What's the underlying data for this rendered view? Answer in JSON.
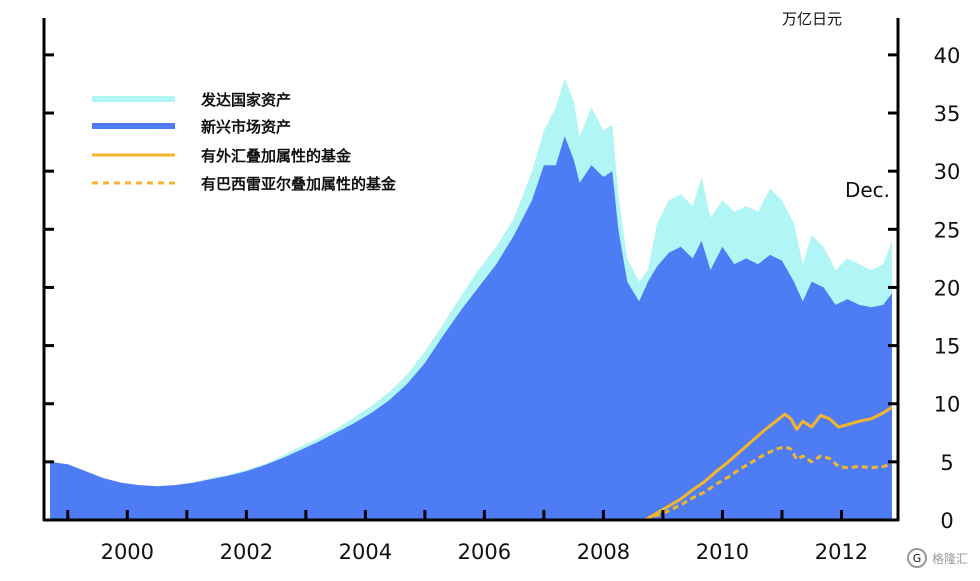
{
  "chart_data": {
    "type": "area",
    "title": "",
    "y_unit": "万亿日元",
    "annotation": "Dec.",
    "x_tick_labels": [
      "2000",
      "2002",
      "2004",
      "2006",
      "2008",
      "2010",
      "2012"
    ],
    "x_range": [
      1998.6,
      2012.95
    ],
    "y_ticks": [
      0,
      5,
      10,
      15,
      20,
      25,
      30,
      35,
      40
    ],
    "ylim": [
      0,
      43
    ],
    "y_axis_side": "right",
    "legend_position": "top-left",
    "series": [
      {
        "name": "发达国家资产",
        "style": "area",
        "color": "#b2f5f5",
        "points": [
          [
            1998.7,
            5.0
          ],
          [
            1999.0,
            4.8
          ],
          [
            1999.3,
            4.2
          ],
          [
            1999.6,
            3.6
          ],
          [
            1999.9,
            3.2
          ],
          [
            2000.2,
            3.0
          ],
          [
            2000.5,
            2.9
          ],
          [
            2000.8,
            3.0
          ],
          [
            2001.1,
            3.2
          ],
          [
            2001.4,
            3.6
          ],
          [
            2001.7,
            3.9
          ],
          [
            2002.0,
            4.3
          ],
          [
            2002.3,
            4.8
          ],
          [
            2002.6,
            5.5
          ],
          [
            2002.9,
            6.3
          ],
          [
            2003.2,
            7.0
          ],
          [
            2003.5,
            7.8
          ],
          [
            2003.8,
            8.8
          ],
          [
            2004.1,
            9.8
          ],
          [
            2004.4,
            11.0
          ],
          [
            2004.7,
            12.5
          ],
          [
            2005.0,
            14.5
          ],
          [
            2005.3,
            16.8
          ],
          [
            2005.6,
            19.2
          ],
          [
            2005.9,
            21.5
          ],
          [
            2006.2,
            23.5
          ],
          [
            2006.5,
            26.0
          ],
          [
            2006.8,
            30.0
          ],
          [
            2007.0,
            33.5
          ],
          [
            2007.2,
            35.5
          ],
          [
            2007.35,
            38.0
          ],
          [
            2007.5,
            36.0
          ],
          [
            2007.6,
            33.0
          ],
          [
            2007.8,
            35.5
          ],
          [
            2008.0,
            33.5
          ],
          [
            2008.15,
            34.0
          ],
          [
            2008.25,
            28.0
          ],
          [
            2008.4,
            22.5
          ],
          [
            2008.6,
            20.5
          ],
          [
            2008.75,
            21.5
          ],
          [
            2008.9,
            25.5
          ],
          [
            2009.1,
            27.5
          ],
          [
            2009.3,
            28.0
          ],
          [
            2009.5,
            27.0
          ],
          [
            2009.65,
            29.5
          ],
          [
            2009.8,
            26.0
          ],
          [
            2010.0,
            27.5
          ],
          [
            2010.2,
            26.5
          ],
          [
            2010.4,
            27.0
          ],
          [
            2010.6,
            26.5
          ],
          [
            2010.8,
            28.5
          ],
          [
            2011.0,
            27.5
          ],
          [
            2011.2,
            25.5
          ],
          [
            2011.35,
            22.0
          ],
          [
            2011.5,
            24.5
          ],
          [
            2011.7,
            23.5
          ],
          [
            2011.9,
            21.5
          ],
          [
            2012.1,
            22.5
          ],
          [
            2012.3,
            22.0
          ],
          [
            2012.5,
            21.5
          ],
          [
            2012.7,
            22.0
          ],
          [
            2012.85,
            24.0
          ]
        ]
      },
      {
        "name": "新兴市场资产",
        "style": "area",
        "color": "#4d7cf5",
        "points": [
          [
            1998.7,
            5.0
          ],
          [
            1999.0,
            4.8
          ],
          [
            1999.3,
            4.2
          ],
          [
            1999.6,
            3.6
          ],
          [
            1999.9,
            3.2
          ],
          [
            2000.2,
            3.0
          ],
          [
            2000.5,
            2.9
          ],
          [
            2000.8,
            3.0
          ],
          [
            2001.1,
            3.2
          ],
          [
            2001.4,
            3.5
          ],
          [
            2001.7,
            3.8
          ],
          [
            2002.0,
            4.2
          ],
          [
            2002.3,
            4.7
          ],
          [
            2002.6,
            5.3
          ],
          [
            2002.9,
            6.0
          ],
          [
            2003.2,
            6.7
          ],
          [
            2003.5,
            7.5
          ],
          [
            2003.8,
            8.3
          ],
          [
            2004.1,
            9.2
          ],
          [
            2004.4,
            10.3
          ],
          [
            2004.7,
            11.7
          ],
          [
            2005.0,
            13.5
          ],
          [
            2005.3,
            15.8
          ],
          [
            2005.6,
            18.0
          ],
          [
            2005.9,
            20.0
          ],
          [
            2006.2,
            22.0
          ],
          [
            2006.5,
            24.5
          ],
          [
            2006.8,
            27.5
          ],
          [
            2007.0,
            30.5
          ],
          [
            2007.2,
            30.5
          ],
          [
            2007.35,
            33.0
          ],
          [
            2007.5,
            31.0
          ],
          [
            2007.6,
            29.0
          ],
          [
            2007.8,
            30.5
          ],
          [
            2008.0,
            29.5
          ],
          [
            2008.15,
            30.0
          ],
          [
            2008.25,
            25.0
          ],
          [
            2008.4,
            20.5
          ],
          [
            2008.6,
            18.8
          ],
          [
            2008.75,
            20.5
          ],
          [
            2008.9,
            21.8
          ],
          [
            2009.1,
            23.0
          ],
          [
            2009.3,
            23.5
          ],
          [
            2009.5,
            22.5
          ],
          [
            2009.65,
            24.0
          ],
          [
            2009.8,
            21.5
          ],
          [
            2010.0,
            23.5
          ],
          [
            2010.2,
            22.0
          ],
          [
            2010.4,
            22.5
          ],
          [
            2010.6,
            22.0
          ],
          [
            2010.8,
            22.8
          ],
          [
            2011.0,
            22.3
          ],
          [
            2011.2,
            20.5
          ],
          [
            2011.35,
            18.8
          ],
          [
            2011.5,
            20.5
          ],
          [
            2011.7,
            20.0
          ],
          [
            2011.9,
            18.5
          ],
          [
            2012.1,
            19.0
          ],
          [
            2012.3,
            18.5
          ],
          [
            2012.5,
            18.3
          ],
          [
            2012.7,
            18.5
          ],
          [
            2012.85,
            19.5
          ]
        ]
      },
      {
        "name": "有外汇叠加属性的基金",
        "style": "line",
        "color": "#f5b52a",
        "points": [
          [
            2008.7,
            0.0
          ],
          [
            2008.9,
            0.6
          ],
          [
            2009.1,
            1.2
          ],
          [
            2009.3,
            1.8
          ],
          [
            2009.5,
            2.6
          ],
          [
            2009.7,
            3.3
          ],
          [
            2009.9,
            4.2
          ],
          [
            2010.1,
            5.0
          ],
          [
            2010.3,
            5.9
          ],
          [
            2010.5,
            6.8
          ],
          [
            2010.7,
            7.7
          ],
          [
            2010.9,
            8.5
          ],
          [
            2011.05,
            9.1
          ],
          [
            2011.15,
            8.7
          ],
          [
            2011.25,
            7.8
          ],
          [
            2011.35,
            8.5
          ],
          [
            2011.5,
            8.0
          ],
          [
            2011.65,
            9.0
          ],
          [
            2011.8,
            8.7
          ],
          [
            2011.95,
            8.0
          ],
          [
            2012.1,
            8.2
          ],
          [
            2012.3,
            8.5
          ],
          [
            2012.5,
            8.7
          ],
          [
            2012.7,
            9.2
          ],
          [
            2012.85,
            9.7
          ]
        ]
      },
      {
        "name": "有巴西雷亚尔叠加属性的基金",
        "style": "dashed",
        "color": "#f5b52a",
        "points": [
          [
            2008.7,
            0.0
          ],
          [
            2008.9,
            0.4
          ],
          [
            2009.1,
            0.8
          ],
          [
            2009.3,
            1.3
          ],
          [
            2009.5,
            1.9
          ],
          [
            2009.7,
            2.4
          ],
          [
            2009.9,
            3.1
          ],
          [
            2010.1,
            3.7
          ],
          [
            2010.3,
            4.4
          ],
          [
            2010.5,
            5.0
          ],
          [
            2010.7,
            5.6
          ],
          [
            2010.9,
            6.1
          ],
          [
            2011.05,
            6.3
          ],
          [
            2011.15,
            6.1
          ],
          [
            2011.25,
            5.2
          ],
          [
            2011.35,
            5.5
          ],
          [
            2011.5,
            5.0
          ],
          [
            2011.65,
            5.5
          ],
          [
            2011.8,
            5.3
          ],
          [
            2011.95,
            4.6
          ],
          [
            2012.1,
            4.5
          ],
          [
            2012.3,
            4.6
          ],
          [
            2012.5,
            4.5
          ],
          [
            2012.7,
            4.6
          ],
          [
            2012.85,
            4.8
          ]
        ]
      }
    ]
  },
  "watermark": {
    "text": "格隆汇",
    "icon": "g-logo-icon"
  }
}
